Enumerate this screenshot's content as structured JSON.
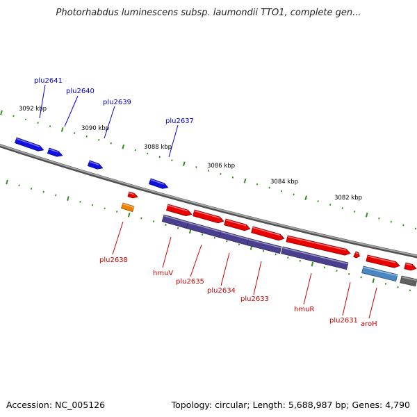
{
  "title": "Photorhabdus luminescens subsp. laumondii TTO1, complete gen...",
  "footer": {
    "accession": "Accession: NC_005126",
    "summary": "Topology: circular; Length: 5,688,987 bp; Genes: 4,790"
  },
  "colors": {
    "background": "#ffffff",
    "backbone": "#7f7f7f",
    "tick": "#2f8f1f",
    "scale_label": "#000000",
    "label_blue": "#0000cc",
    "label_red": "#cc0000",
    "gene_blue": "#1010e0",
    "gene_red": "#e80000",
    "gene_orange": "#f08000",
    "gene_purple": "#4a3f8f",
    "gene_steel": "#4a86c0",
    "gene_gray": "#606060"
  },
  "scale_labels": [
    "3092 kbp",
    "3090 kbp",
    "3088 kbp",
    "3086 kbp",
    "3084 kbp",
    "3082 kbp"
  ],
  "genes": [
    {
      "name": "plu2641",
      "label_color": "blue",
      "fill": "gene_blue"
    },
    {
      "name": "plu2640",
      "label_color": "blue",
      "fill": "gene_blue"
    },
    {
      "name": "plu2639",
      "label_color": "blue",
      "fill": "gene_blue"
    },
    {
      "name": "plu2637",
      "label_color": "blue",
      "fill": "gene_blue"
    },
    {
      "name": "plu2638",
      "label_color": "red",
      "fill": "gene_red"
    },
    {
      "name": "plu2638",
      "label_color": "red",
      "fill": "gene_orange"
    },
    {
      "name": "hmuV",
      "label_color": "red",
      "fill": "gene_red"
    },
    {
      "name": "plu2635",
      "label_color": "red",
      "fill": "gene_red"
    },
    {
      "name": "plu2634",
      "label_color": "red",
      "fill": "gene_red"
    },
    {
      "name": "plu2633",
      "label_color": "red",
      "fill": "gene_red"
    },
    {
      "name": "hmuR",
      "label_color": "red",
      "fill": "gene_red"
    },
    {
      "name": "plu2631",
      "label_color": "red",
      "fill": "gene_red"
    },
    {
      "name": "aroH",
      "label_color": "red",
      "fill": "gene_red"
    }
  ],
  "gene_labels": [
    "plu2641",
    "plu2640",
    "plu2639",
    "plu2637",
    "plu2638",
    "hmuV",
    "plu2635",
    "plu2634",
    "plu2633",
    "hmuR",
    "plu2631",
    "aroH"
  ]
}
